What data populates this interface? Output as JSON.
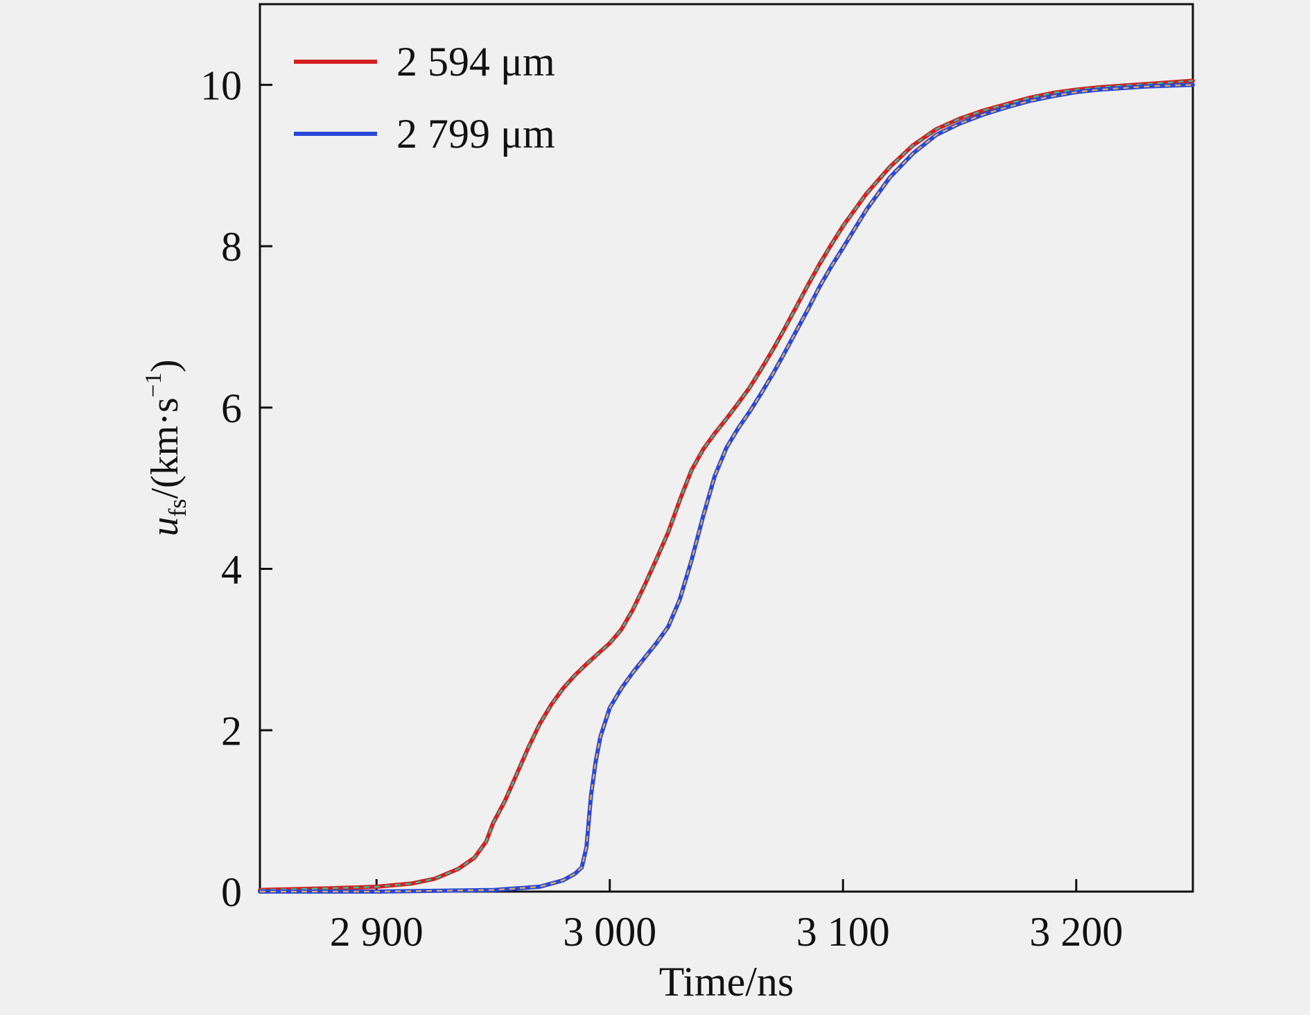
{
  "chart_data": {
    "type": "line",
    "title": "",
    "xlabel": "Time/ns",
    "ylabel": {
      "var": "u",
      "sub": "fs",
      "unit_pre": "/(km·s",
      "unit_sup": "−1",
      "unit_post": ")"
    },
    "xlim": [
      2850,
      3250
    ],
    "ylim": [
      0,
      11
    ],
    "x_ticks": [
      2900,
      3000,
      3100,
      3200
    ],
    "x_tick_labels": [
      "2 900",
      "3 000",
      "3 100",
      "3 200"
    ],
    "y_ticks": [
      0,
      2,
      4,
      6,
      8,
      10
    ],
    "y_tick_labels": [
      "0",
      "2",
      "4",
      "6",
      "8",
      "10"
    ],
    "grid": false,
    "legend_position": "top-left",
    "series": [
      {
        "name": "2 594 μm",
        "color": "#d42020",
        "overlay_color": "#2fbfa0",
        "x": [
          2850,
          2880,
          2900,
          2915,
          2925,
          2935,
          2942,
          2947,
          2950,
          2955,
          2960,
          2965,
          2970,
          2975,
          2980,
          2985,
          2990,
          2995,
          3000,
          3005,
          3010,
          3015,
          3020,
          3025,
          3030,
          3035,
          3040,
          3045,
          3050,
          3055,
          3060,
          3065,
          3070,
          3075,
          3080,
          3085,
          3090,
          3095,
          3100,
          3110,
          3120,
          3130,
          3140,
          3150,
          3160,
          3170,
          3180,
          3190,
          3200,
          3210,
          3220,
          3230,
          3240,
          3250
        ],
        "y": [
          0.02,
          0.04,
          0.06,
          0.1,
          0.16,
          0.28,
          0.42,
          0.62,
          0.85,
          1.12,
          1.45,
          1.78,
          2.08,
          2.32,
          2.52,
          2.68,
          2.82,
          2.95,
          3.08,
          3.25,
          3.5,
          3.8,
          4.12,
          4.45,
          4.85,
          5.22,
          5.48,
          5.68,
          5.86,
          6.05,
          6.25,
          6.48,
          6.72,
          6.98,
          7.25,
          7.52,
          7.78,
          8.02,
          8.25,
          8.65,
          8.98,
          9.25,
          9.45,
          9.58,
          9.68,
          9.76,
          9.84,
          9.9,
          9.94,
          9.97,
          9.99,
          10.01,
          10.03,
          10.05
        ]
      },
      {
        "name": "2 799 μm",
        "color": "#2848d8",
        "overlay_color": "#d8a860",
        "x": [
          2850,
          2900,
          2950,
          2970,
          2980,
          2985,
          2988,
          2990,
          2992,
          2994,
          2996,
          3000,
          3005,
          3010,
          3015,
          3020,
          3025,
          3030,
          3035,
          3040,
          3045,
          3050,
          3055,
          3060,
          3065,
          3070,
          3075,
          3080,
          3085,
          3090,
          3095,
          3100,
          3110,
          3120,
          3130,
          3140,
          3150,
          3160,
          3170,
          3180,
          3190,
          3200,
          3210,
          3220,
          3230,
          3240,
          3250
        ],
        "y": [
          0.0,
          0.0,
          0.02,
          0.06,
          0.14,
          0.22,
          0.3,
          0.55,
          1.2,
          1.62,
          1.92,
          2.28,
          2.52,
          2.72,
          2.9,
          3.08,
          3.28,
          3.62,
          4.1,
          4.65,
          5.15,
          5.5,
          5.74,
          5.95,
          6.18,
          6.42,
          6.68,
          6.95,
          7.22,
          7.5,
          7.75,
          7.98,
          8.45,
          8.85,
          9.15,
          9.38,
          9.52,
          9.63,
          9.72,
          9.8,
          9.86,
          9.91,
          9.94,
          9.96,
          9.98,
          9.99,
          10.0
        ]
      }
    ]
  }
}
